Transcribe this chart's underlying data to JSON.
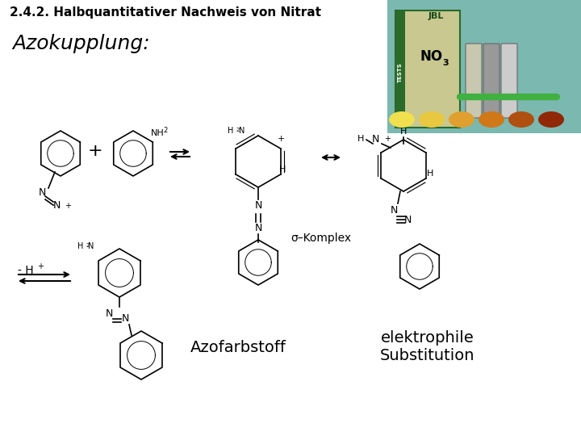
{
  "title": "2.4.2. Halbquantitativer Nachweis von Nitrat",
  "subtitle": "Azokupplung:",
  "label_sigma": "σ–Komplex",
  "label_azofarbstoff": "Azofarbstoff",
  "label_elektrophile": "elektrophile\nSubstitution",
  "background_color": "#ffffff",
  "photo_colors": {
    "bg": "#7ab8b0",
    "box_face": "#c8c890",
    "box_edge": "#2a6a2a",
    "stripe": "#2a6a2a",
    "dots": [
      "#f0e050",
      "#e8c840",
      "#e0a030",
      "#d07818",
      "#b05010",
      "#902808"
    ]
  }
}
